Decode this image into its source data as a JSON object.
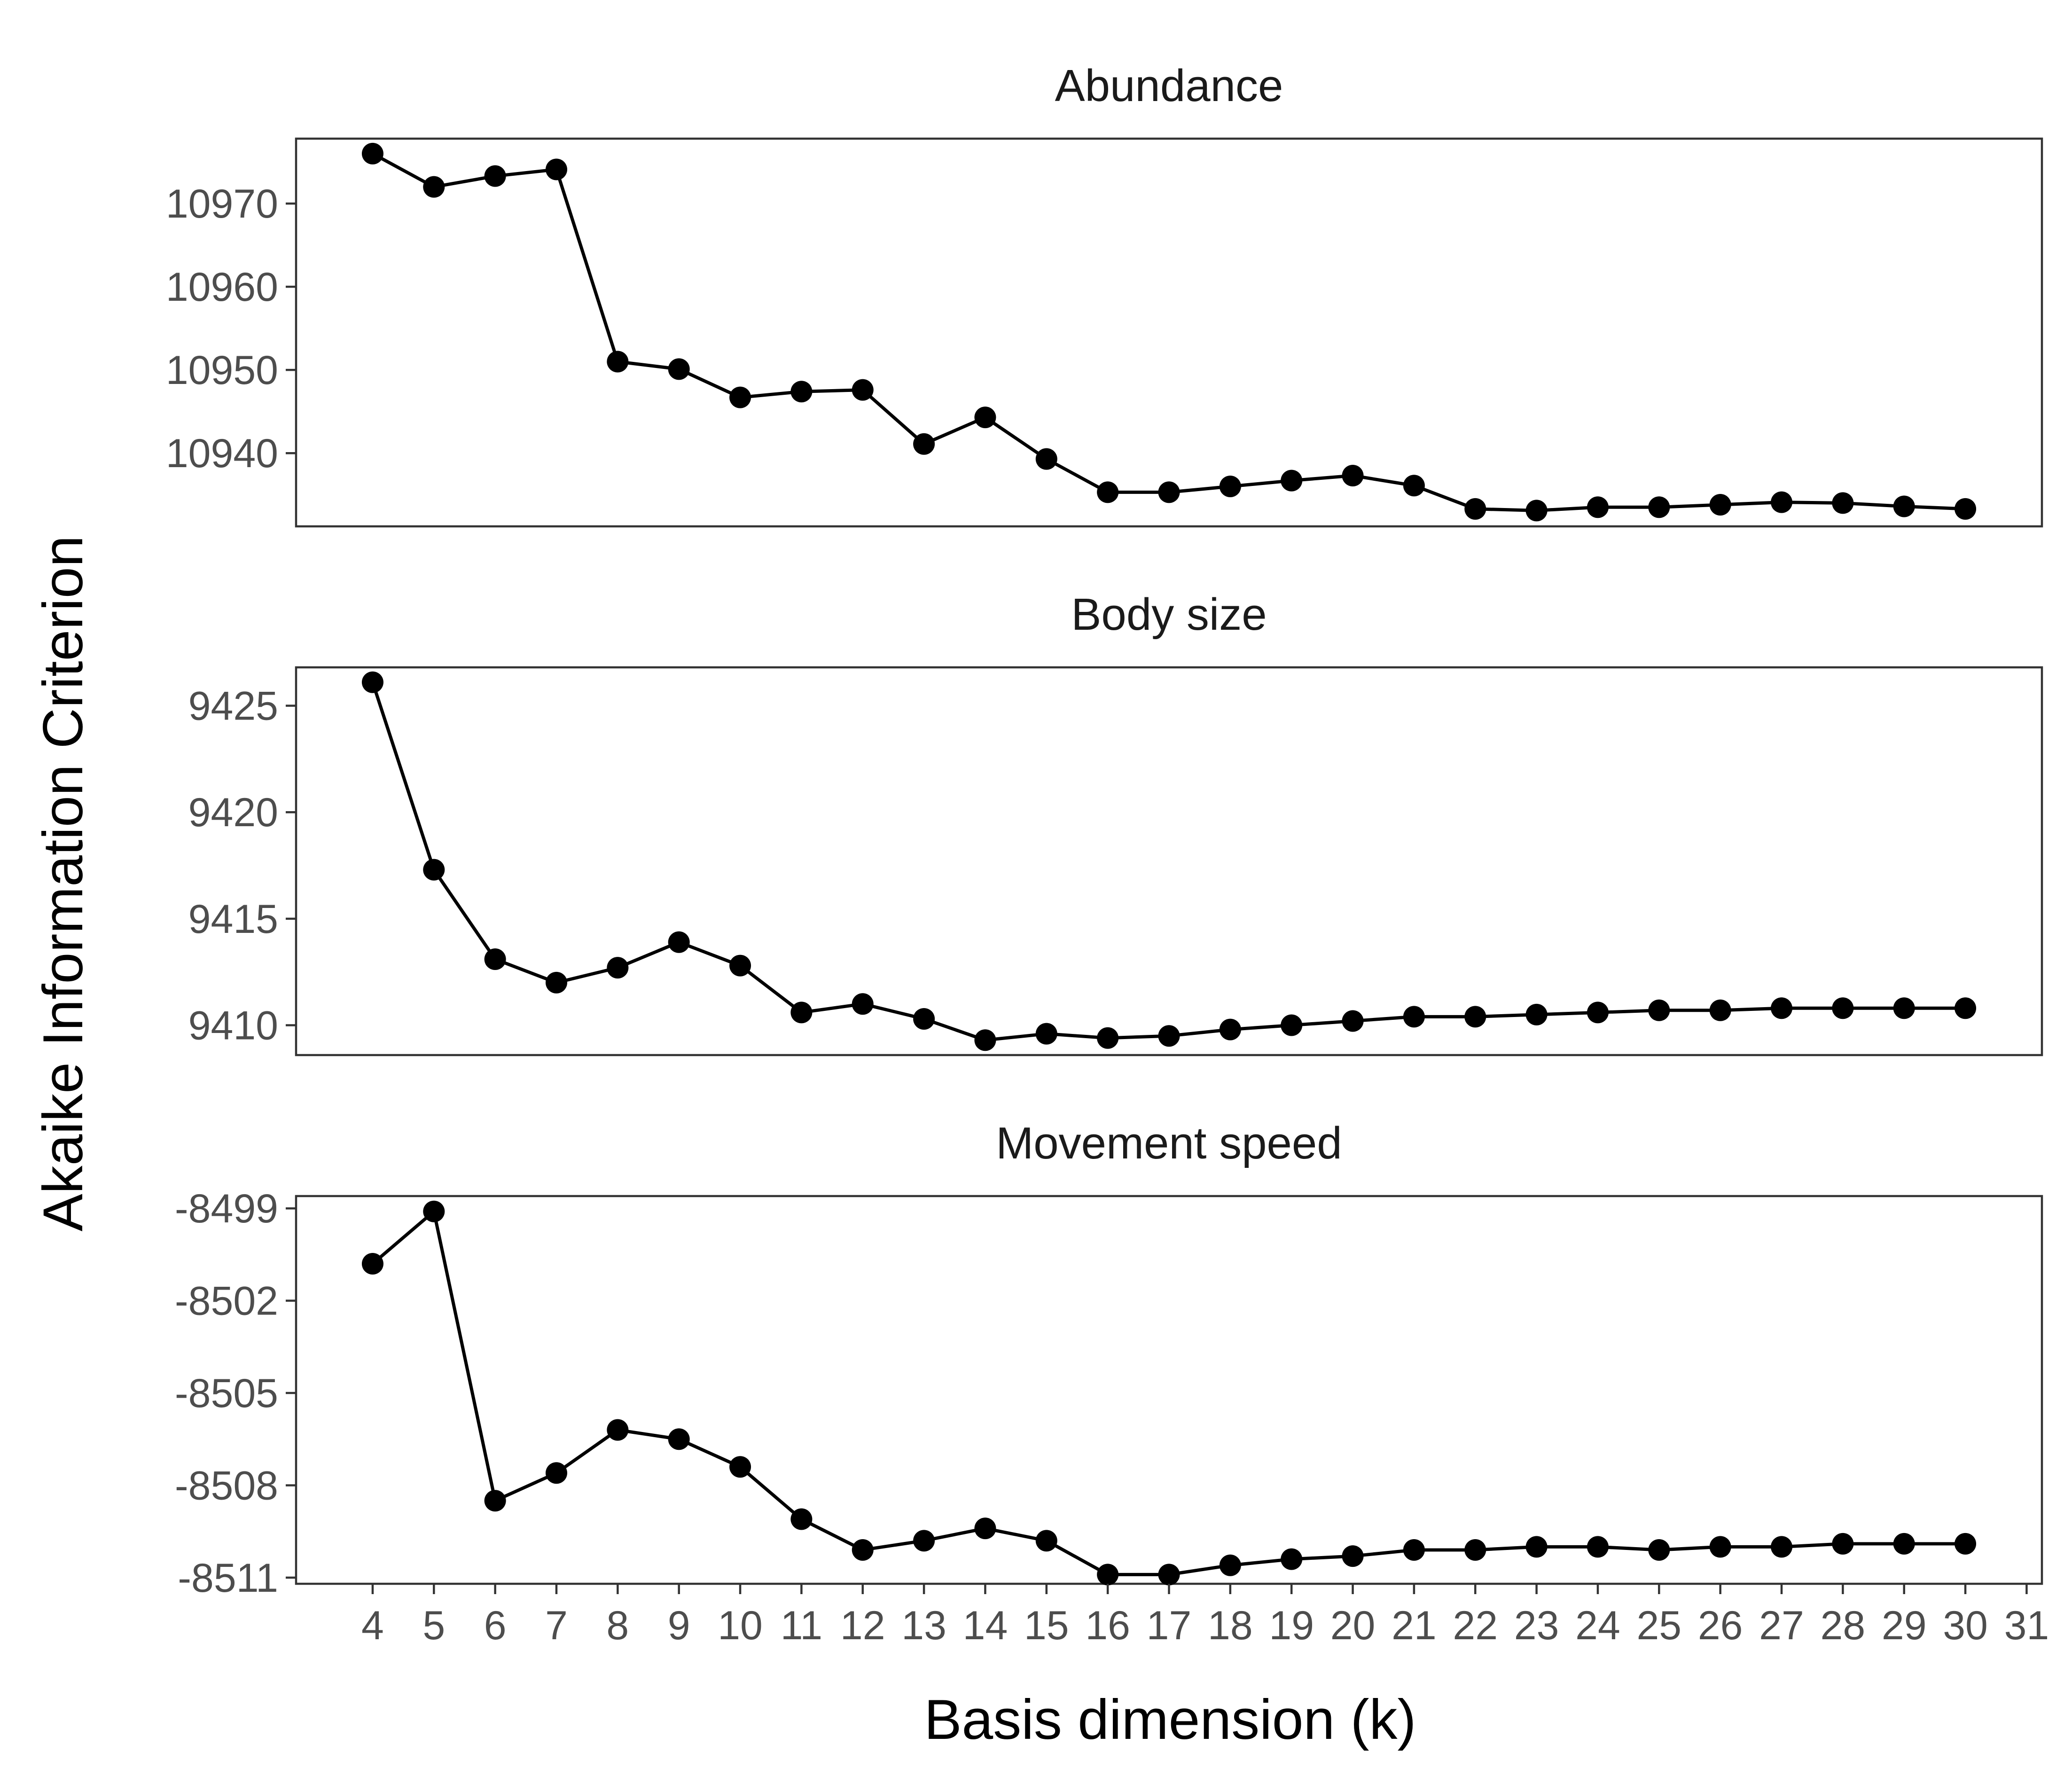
{
  "chart_data": {
    "type": "line",
    "xlabel": "Basis dimension (k)",
    "ylabel": "Akaike Information Criterion",
    "x": [
      4,
      5,
      6,
      7,
      8,
      9,
      10,
      11,
      12,
      13,
      14,
      15,
      16,
      17,
      18,
      19,
      20,
      21,
      22,
      23,
      24,
      25,
      26,
      27,
      28,
      29,
      30
    ],
    "x_ticks": [
      4,
      5,
      6,
      7,
      8,
      9,
      10,
      11,
      12,
      13,
      14,
      15,
      16,
      17,
      18,
      19,
      20,
      21,
      22,
      23,
      24,
      25,
      26,
      27,
      28,
      29,
      30,
      31
    ],
    "xlim": [
      2.75,
      31.25
    ],
    "grid": false,
    "legend": "none",
    "panels": [
      {
        "title": "Abundance",
        "ylim": [
          10931.2,
          10977.8
        ],
        "y_ticks": [
          10940,
          10950,
          10960,
          10970
        ],
        "values": [
          10976.0,
          10972.0,
          10973.3,
          10974.1,
          10951.0,
          10950.1,
          10946.7,
          10947.4,
          10947.6,
          10941.1,
          10944.3,
          10939.3,
          10935.3,
          10935.3,
          10936.0,
          10936.7,
          10937.3,
          10936.1,
          10933.3,
          10933.1,
          10933.5,
          10933.5,
          10933.8,
          10934.1,
          10934.0,
          10933.6,
          10933.3
        ]
      },
      {
        "title": "Body size",
        "ylim": [
          9408.6,
          9426.8
        ],
        "y_ticks": [
          9410,
          9415,
          9420,
          9425
        ],
        "values": [
          9426.1,
          9417.3,
          9413.1,
          9412.0,
          9412.7,
          9413.9,
          9412.8,
          9410.6,
          9411.0,
          9410.3,
          9409.3,
          9409.6,
          9409.4,
          9409.5,
          9409.8,
          9410.0,
          9410.2,
          9410.4,
          9410.4,
          9410.5,
          9410.6,
          9410.7,
          9410.7,
          9410.8,
          9410.8,
          9410.8,
          9410.8
        ]
      },
      {
        "title": "Movement speed",
        "ylim": [
          -8511.2,
          -8498.6
        ],
        "y_ticks": [
          -8499,
          -8502,
          -8505,
          -8508,
          -8511
        ],
        "values": [
          -8500.8,
          -8499.1,
          -8508.5,
          -8507.6,
          -8506.2,
          -8506.5,
          -8507.4,
          -8509.1,
          -8510.1,
          -8509.8,
          -8509.4,
          -8509.8,
          -8510.9,
          -8510.9,
          -8510.6,
          -8510.4,
          -8510.3,
          -8510.1,
          -8510.1,
          -8510.0,
          -8510.0,
          -8510.1,
          -8510.0,
          -8510.0,
          -8509.9,
          -8509.9,
          -8509.9
        ]
      }
    ]
  }
}
